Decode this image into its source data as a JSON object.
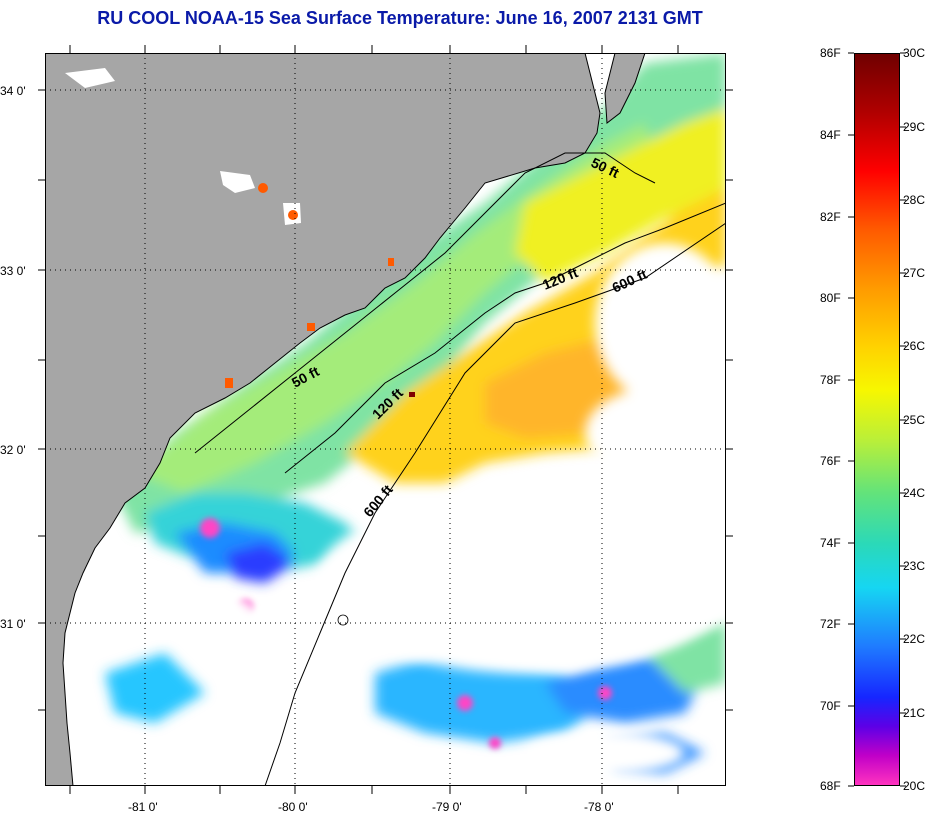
{
  "title": "RU COOL  NOAA-15  Sea Surface Temperature:  June 16, 2007 2131 GMT",
  "lat_labels": [
    "34 0'",
    "33 0'",
    "32 0'",
    "31 0'"
  ],
  "lon_labels": [
    "-81 0'",
    "-80 0'",
    "-79 0'",
    "-78 0'"
  ],
  "isobaths": [
    "50 ft",
    "50 ft",
    "120 ft",
    "120 ft",
    "600 ft",
    "600 ft"
  ],
  "colorbar": {
    "fahrenheit": [
      "86F",
      "84F",
      "82F",
      "80F",
      "78F",
      "76F",
      "74F",
      "72F",
      "70F",
      "68F"
    ],
    "celsius": [
      "30C",
      "29C",
      "28C",
      "27C",
      "26C",
      "25C",
      "24C",
      "23C",
      "22C",
      "21C",
      "20C"
    ]
  },
  "colors": {
    "land": "#a6a6a6",
    "title": "#0a1aa8",
    "cloud": "#ffffff"
  }
}
